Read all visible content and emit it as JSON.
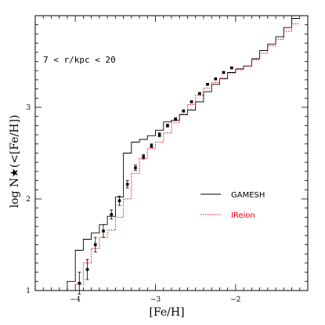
{
  "chart_data": {
    "type": "line",
    "xlabel": "[Fe/H]",
    "ylabel": "log N★(<[Fe/H])",
    "annotation": "7 < r/kpc < 20",
    "xlim": [
      -4.5,
      -1.1
    ],
    "ylim": [
      1.0,
      4.0
    ],
    "x_ticks": [
      -4,
      -3,
      -2
    ],
    "x_tick_labels": [
      "−4",
      "−3",
      "−2"
    ],
    "y_ticks": [
      1,
      2,
      3
    ],
    "y_tick_labels": [
      "1",
      "2",
      "3"
    ],
    "grid": false,
    "legend_position": "right",
    "colors": {
      "gamesh": "#000000",
      "ireion": "#e8000b",
      "observed": "#000000"
    },
    "series": [
      {
        "name": "GAMESH",
        "style": "solid-step",
        "x": [
          -4.1,
          -4.0,
          -3.9,
          -3.8,
          -3.7,
          -3.6,
          -3.5,
          -3.4,
          -3.3,
          -3.2,
          -3.1,
          -3.0,
          -2.9,
          -2.8,
          -2.7,
          -2.6,
          -2.5,
          -2.4,
          -2.3,
          -2.2,
          -2.1,
          -2.0,
          -1.9,
          -1.8,
          -1.7,
          -1.6,
          -1.5,
          -1.4,
          -1.3
        ],
        "y": [
          1.1,
          1.44,
          1.56,
          1.63,
          1.72,
          1.81,
          2.02,
          2.5,
          2.62,
          2.65,
          2.69,
          2.75,
          2.84,
          2.86,
          2.92,
          2.97,
          3.06,
          3.17,
          3.25,
          3.31,
          3.38,
          3.42,
          3.45,
          3.53,
          3.62,
          3.69,
          3.77,
          3.87,
          3.97
        ]
      },
      {
        "name": "IReion",
        "style": "dotted-step",
        "x": [
          -4.0,
          -3.9,
          -3.8,
          -3.7,
          -3.6,
          -3.5,
          -3.4,
          -3.3,
          -3.2,
          -3.1,
          -3.0,
          -2.9,
          -2.8,
          -2.7,
          -2.6,
          -2.5,
          -2.4,
          -2.3,
          -2.2,
          -2.1,
          -2.0,
          -1.9,
          -1.8,
          -1.7,
          -1.6,
          -1.5,
          -1.4,
          -1.3
        ],
        "y": [
          1.07,
          1.3,
          1.46,
          1.58,
          1.66,
          1.8,
          2.0,
          2.28,
          2.44,
          2.55,
          2.62,
          2.72,
          2.83,
          2.93,
          3.03,
          3.13,
          3.21,
          3.27,
          3.32,
          3.37,
          3.41,
          3.45,
          3.52,
          3.59,
          3.67,
          3.74,
          3.83,
          3.91
        ]
      }
    ],
    "observed": {
      "x": [
        -3.95,
        -3.85,
        -3.75,
        -3.65,
        -3.55,
        -3.45,
        -3.35,
        -3.25,
        -3.15,
        -3.05,
        -2.95,
        -2.85,
        -2.75,
        -2.65,
        -2.55,
        -2.45,
        -2.35,
        -2.25,
        -2.15,
        -2.05
      ],
      "y": [
        1.08,
        1.23,
        1.5,
        1.65,
        1.83,
        1.98,
        2.16,
        2.34,
        2.46,
        2.58,
        2.7,
        2.8,
        2.87,
        2.96,
        3.06,
        3.15,
        3.25,
        3.31,
        3.38,
        3.43
      ],
      "err": [
        0.12,
        0.11,
        0.08,
        0.07,
        0.05,
        0.05,
        0.04,
        0.03,
        0.025,
        0.02,
        0.02,
        0.015,
        0.015,
        0.012,
        0.01,
        0.01,
        0.01,
        0.01,
        0.008,
        0.008
      ]
    }
  }
}
